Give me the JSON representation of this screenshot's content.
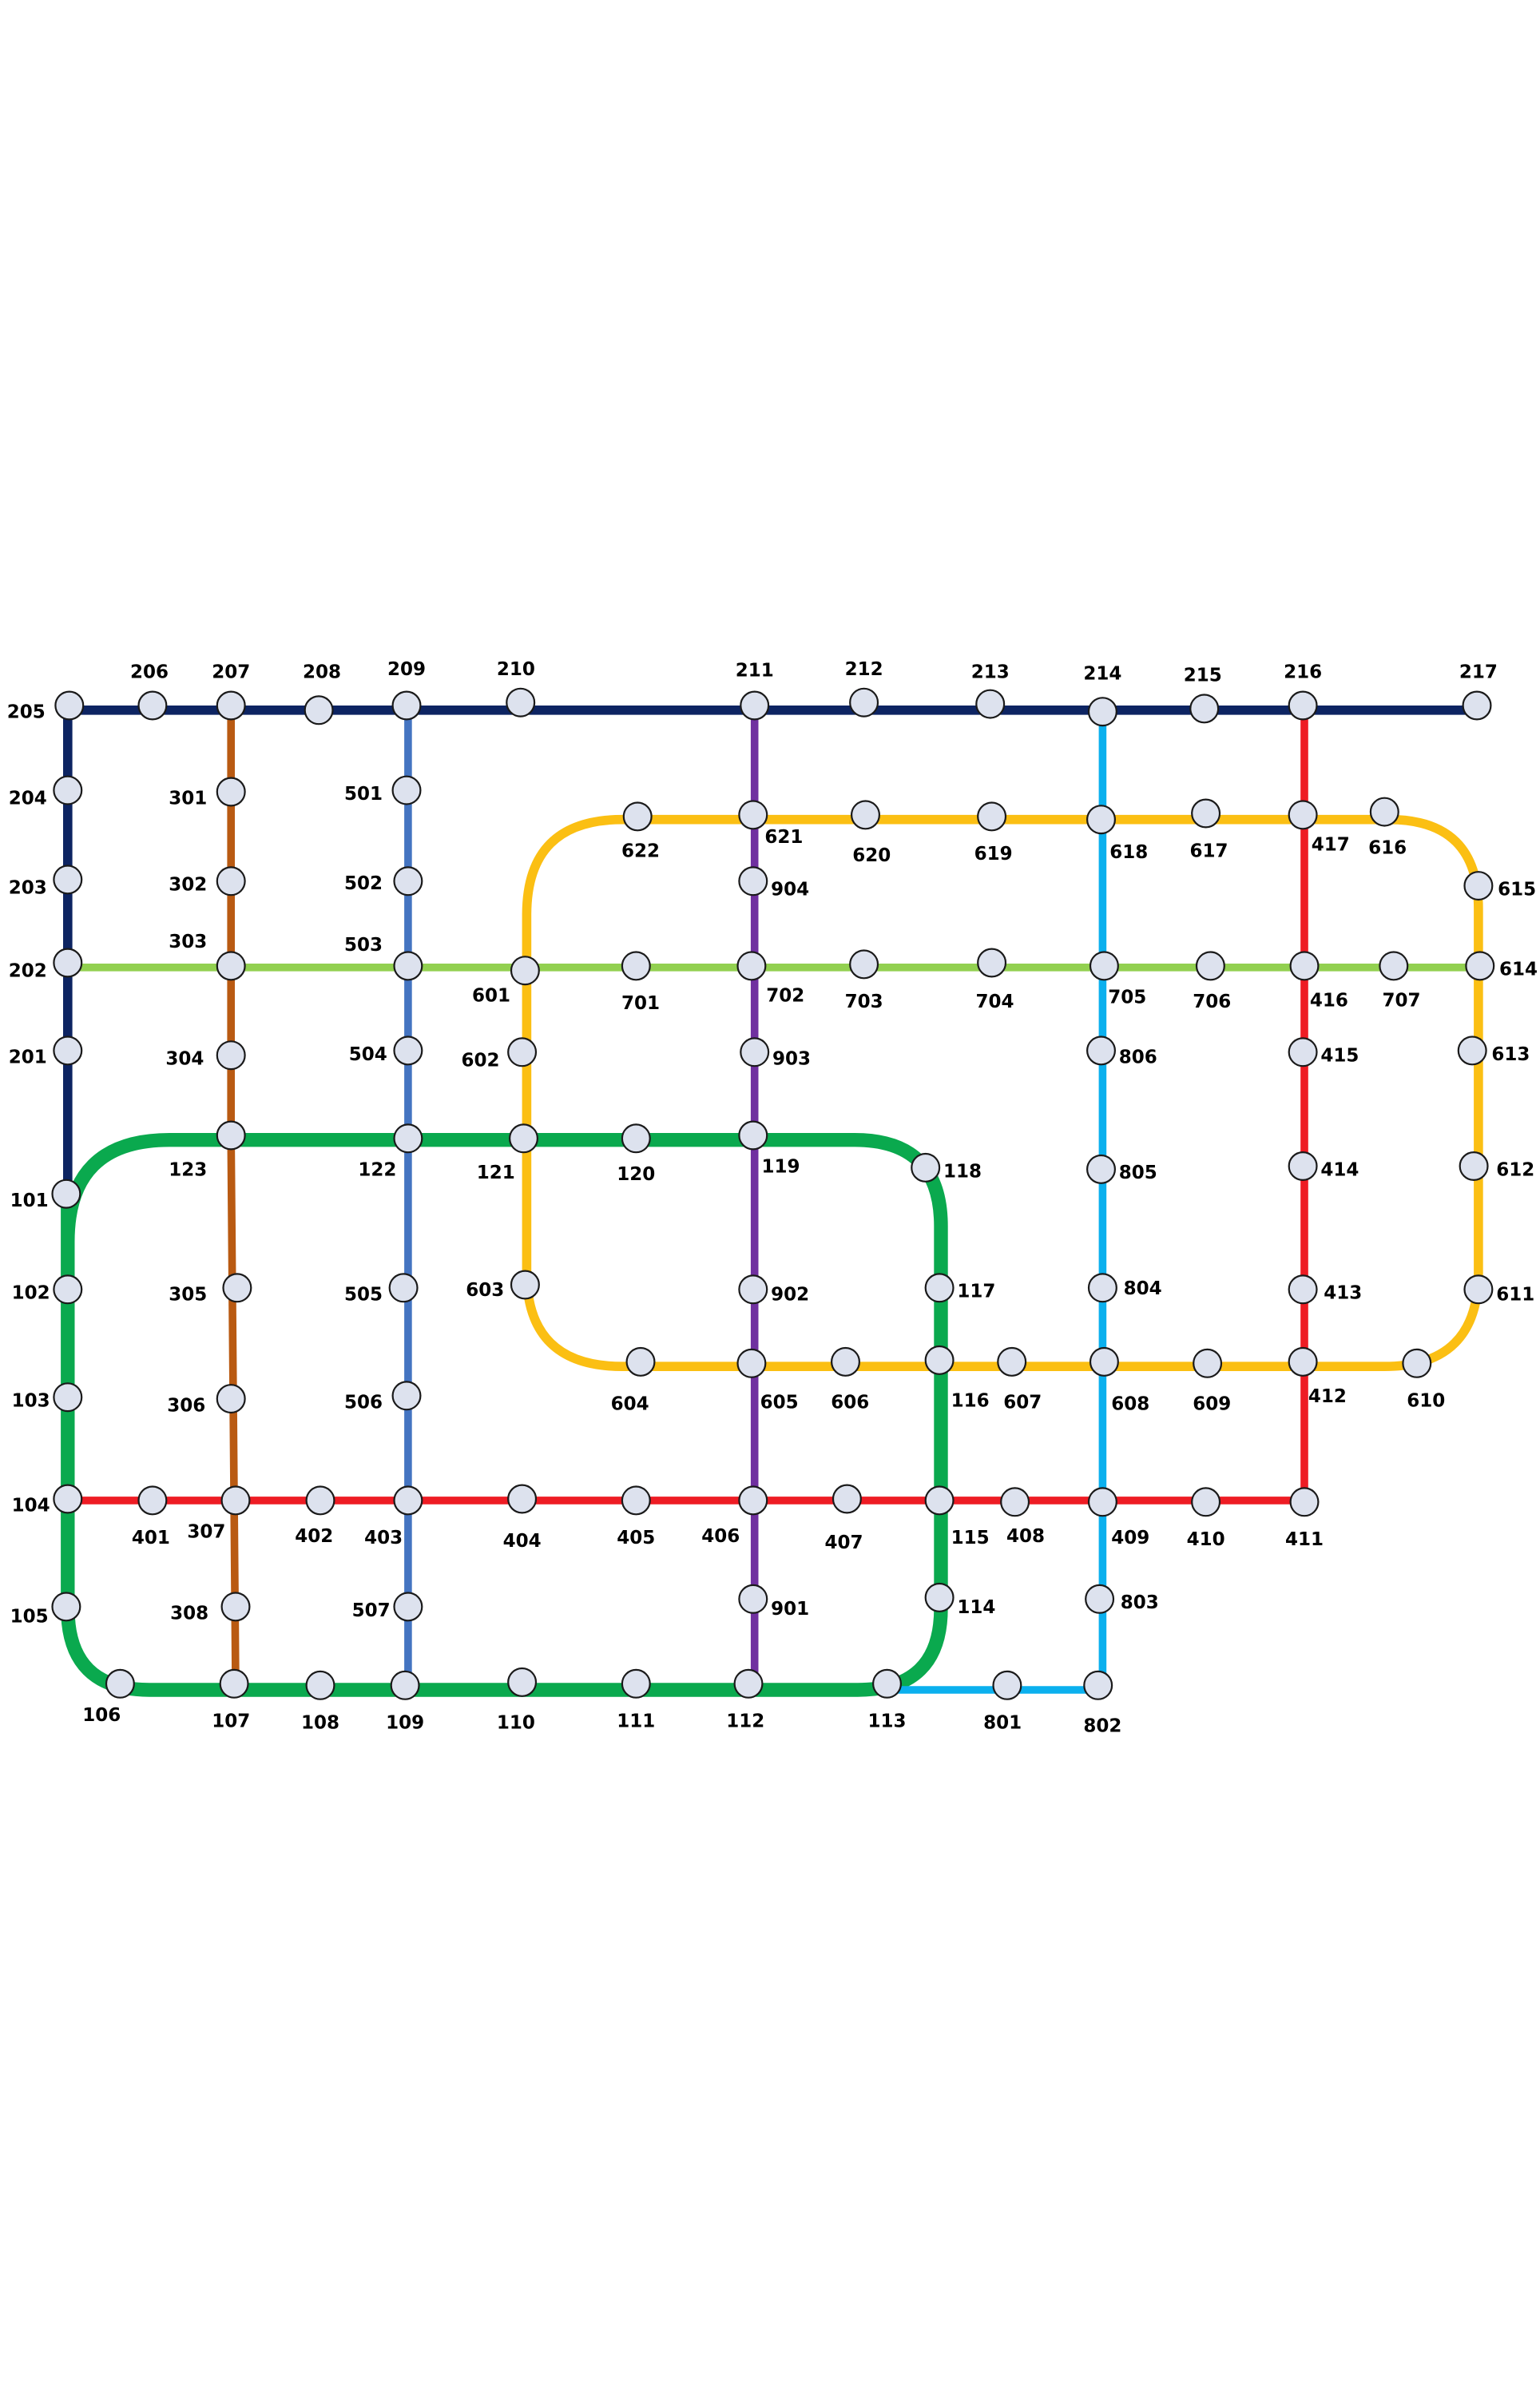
{
  "colors": {
    "line_1": "#0aa94e",
    "line_2": "#0d2462",
    "line_3": "#b95a12",
    "line_4": "#ee1c24",
    "line_5": "#4474c1",
    "line_6": "#fbbf13",
    "line_7": "#92d050",
    "line_8": "#0bb0ee",
    "line_9": "#7030a0",
    "station_fill": "#dde2ee"
  },
  "stations": [
    "101",
    "102",
    "103",
    "104",
    "105",
    "106",
    "107",
    "108",
    "109",
    "110",
    "111",
    "112",
    "113",
    "114",
    "115",
    "116",
    "117",
    "118",
    "119",
    "120",
    "121",
    "122",
    "123",
    "201",
    "202",
    "203",
    "204",
    "205",
    "206",
    "207",
    "208",
    "209",
    "210",
    "211",
    "212",
    "213",
    "214",
    "215",
    "216",
    "217",
    "301",
    "302",
    "303",
    "304",
    "305",
    "306",
    "307",
    "308",
    "401",
    "402",
    "403",
    "404",
    "405",
    "406",
    "407",
    "408",
    "409",
    "410",
    "411",
    "412",
    "413",
    "414",
    "415",
    "416",
    "417",
    "501",
    "502",
    "503",
    "504",
    "505",
    "506",
    "507",
    "601",
    "602",
    "603",
    "604",
    "605",
    "606",
    "607",
    "608",
    "609",
    "610",
    "611",
    "612",
    "613",
    "614",
    "615",
    "616",
    "617",
    "618",
    "619",
    "620",
    "621",
    "622",
    "701",
    "702",
    "703",
    "704",
    "705",
    "706",
    "707",
    "801",
    "802",
    "803",
    "804",
    "805",
    "806",
    "901",
    "902",
    "903",
    "904"
  ]
}
